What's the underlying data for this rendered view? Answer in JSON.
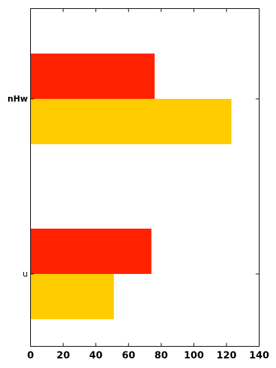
{
  "chart_data": {
    "type": "bar",
    "orientation": "horizontal",
    "categories": [
      "nHw",
      "u"
    ],
    "series": [
      {
        "values": [
          76,
          74
        ],
        "color": "#ff2200"
      },
      {
        "values": [
          123,
          51
        ],
        "color": "#ffcc00"
      }
    ],
    "xlim": [
      0,
      140
    ],
    "xticks": [
      "0",
      "20",
      "40",
      "60",
      "80",
      "100",
      "120",
      "140"
    ],
    "title": "",
    "xlabel": "",
    "ylabel": "",
    "grid": false,
    "legend": "none"
  }
}
